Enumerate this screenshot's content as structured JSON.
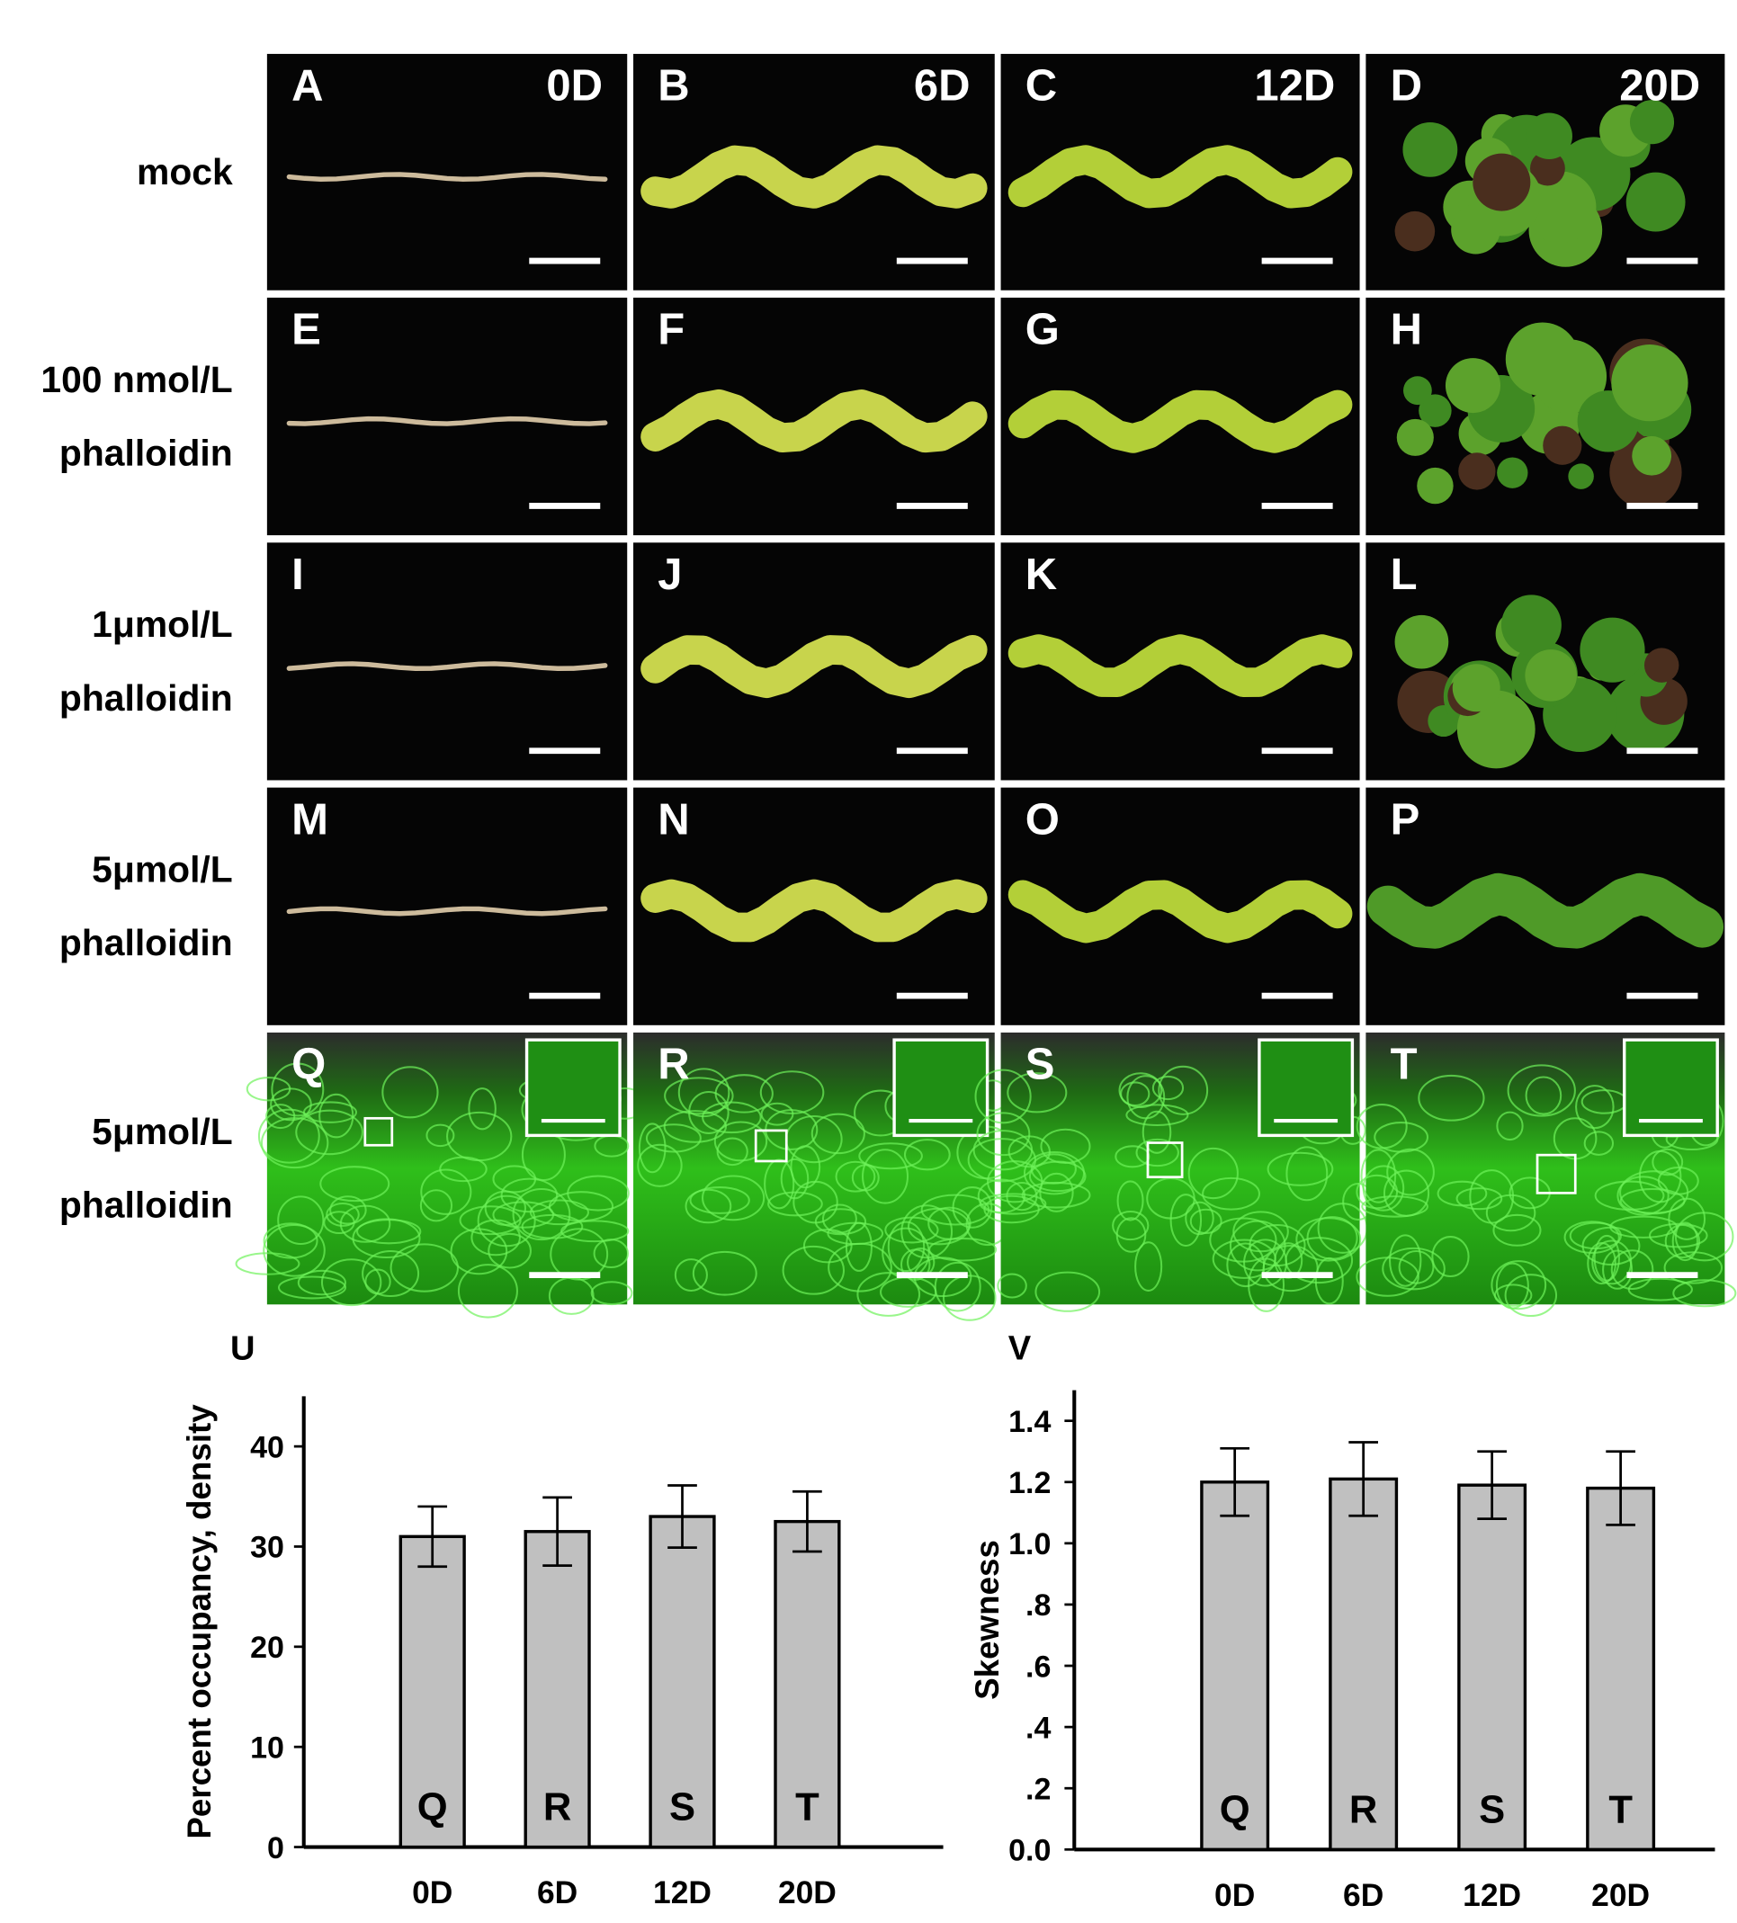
{
  "figure": {
    "row_labels": [
      [
        "mock"
      ],
      [
        "100 nmol/L",
        "phalloidin"
      ],
      [
        "1μmol/L",
        "phalloidin"
      ],
      [
        "5μmol/L",
        "phalloidin"
      ],
      [
        "5μmol/L",
        "phalloidin"
      ]
    ],
    "panels": [
      {
        "letter": "A",
        "day": "0D"
      },
      {
        "letter": "B",
        "day": "6D"
      },
      {
        "letter": "C",
        "day": "12D"
      },
      {
        "letter": "D",
        "day": "20D"
      },
      {
        "letter": "E"
      },
      {
        "letter": "F"
      },
      {
        "letter": "G"
      },
      {
        "letter": "H"
      },
      {
        "letter": "I"
      },
      {
        "letter": "J"
      },
      {
        "letter": "K"
      },
      {
        "letter": "L"
      },
      {
        "letter": "M"
      },
      {
        "letter": "N"
      },
      {
        "letter": "O"
      },
      {
        "letter": "P"
      },
      {
        "letter": "Q"
      },
      {
        "letter": "R"
      },
      {
        "letter": "S"
      },
      {
        "letter": "T"
      }
    ]
  },
  "chart_data": [
    {
      "type": "bar",
      "title": "U",
      "y_label": "Percent occupancy, density",
      "categories": [
        "0D",
        "6D",
        "12D",
        "20D"
      ],
      "values": [
        31,
        31.5,
        33,
        32.5
      ],
      "errors": [
        3,
        3.4,
        3.1,
        3
      ],
      "bar_labels": [
        "Q",
        "R",
        "S",
        "T"
      ],
      "color": "#c0c0c0",
      "ylim": [
        0,
        45
      ],
      "yticks": [
        0,
        10,
        20,
        30,
        40
      ]
    },
    {
      "type": "bar",
      "title": "V",
      "y_label": "Skewness",
      "categories": [
        "0D",
        "6D",
        "12D",
        "20D"
      ],
      "values": [
        1.2,
        1.21,
        1.19,
        1.18
      ],
      "errors": [
        0.11,
        0.12,
        0.11,
        0.12
      ],
      "bar_labels": [
        "Q",
        "R",
        "S",
        "T"
      ],
      "color": "#c0c0c0",
      "ylim": [
        0,
        1.5
      ],
      "yticks": [
        {
          "value": 0,
          "label": "0.0"
        },
        {
          "value": 0.2,
          "label": ".2"
        },
        {
          "value": 0.4,
          "label": ".4"
        },
        {
          "value": 0.6,
          "label": ".6"
        },
        {
          "value": 0.8,
          "label": ".8"
        },
        {
          "value": 1,
          "label": "1.0"
        },
        1.2,
        1.4
      ]
    }
  ]
}
